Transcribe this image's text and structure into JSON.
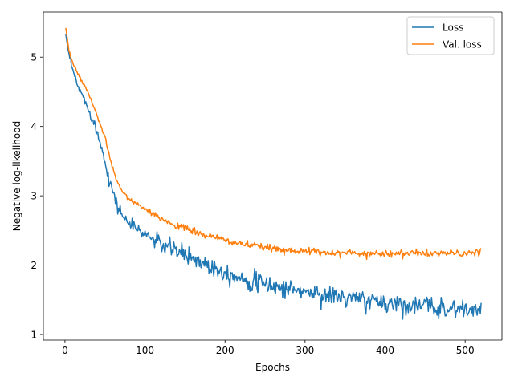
{
  "chart_data": {
    "type": "line",
    "title": "",
    "xlabel": "Epochs",
    "ylabel": "Negative log-likelihood",
    "xlim": [
      -27,
      546
    ],
    "ylim": [
      0.92,
      5.65
    ],
    "xticks": [
      0,
      100,
      200,
      300,
      400,
      500
    ],
    "yticks": [
      1,
      2,
      3,
      4,
      5
    ],
    "grid": false,
    "legend_position": "top-right",
    "series": [
      {
        "name": "Loss",
        "color": "#1f77b4",
        "x": [
          1,
          5,
          10,
          15,
          20,
          25,
          30,
          35,
          40,
          45,
          50,
          55,
          60,
          65,
          70,
          75,
          80,
          90,
          100,
          110,
          120,
          130,
          140,
          150,
          160,
          170,
          180,
          190,
          200,
          210,
          220,
          230,
          240,
          250,
          260,
          270,
          280,
          290,
          300,
          310,
          320,
          330,
          340,
          350,
          360,
          370,
          380,
          390,
          400,
          410,
          420,
          430,
          440,
          450,
          460,
          470,
          480,
          490,
          500,
          510,
          520
        ],
        "y": [
          5.33,
          5.02,
          4.8,
          4.6,
          4.5,
          4.35,
          4.25,
          4.1,
          3.92,
          3.72,
          3.52,
          3.25,
          3.05,
          2.88,
          2.75,
          2.68,
          2.6,
          2.52,
          2.45,
          2.38,
          2.3,
          2.25,
          2.2,
          2.15,
          2.1,
          2.05,
          2.0,
          1.95,
          1.9,
          1.86,
          1.82,
          1.78,
          1.75,
          1.72,
          1.7,
          1.68,
          1.66,
          1.64,
          1.62,
          1.6,
          1.58,
          1.56,
          1.55,
          1.53,
          1.52,
          1.5,
          1.49,
          1.47,
          1.46,
          1.45,
          1.44,
          1.43,
          1.42,
          1.41,
          1.4,
          1.39,
          1.38,
          1.37,
          1.36,
          1.35,
          1.35
        ],
        "noise": 0.07
      },
      {
        "name": "Val. loss",
        "color": "#ff7f0e",
        "x": [
          1,
          5,
          10,
          15,
          20,
          25,
          30,
          35,
          40,
          45,
          50,
          55,
          60,
          65,
          70,
          75,
          80,
          90,
          100,
          110,
          120,
          130,
          140,
          150,
          160,
          170,
          180,
          190,
          200,
          210,
          220,
          230,
          240,
          250,
          260,
          270,
          280,
          290,
          300,
          310,
          320,
          330,
          340,
          350,
          360,
          370,
          380,
          390,
          400,
          410,
          420,
          430,
          440,
          450,
          460,
          470,
          480,
          490,
          500,
          510,
          520
        ],
        "y": [
          5.42,
          5.1,
          4.9,
          4.78,
          4.68,
          4.58,
          4.45,
          4.3,
          4.15,
          4.0,
          3.85,
          3.6,
          3.38,
          3.2,
          3.1,
          3.02,
          2.95,
          2.88,
          2.8,
          2.73,
          2.67,
          2.62,
          2.57,
          2.53,
          2.49,
          2.45,
          2.42,
          2.39,
          2.36,
          2.33,
          2.31,
          2.29,
          2.27,
          2.25,
          2.24,
          2.23,
          2.22,
          2.21,
          2.2,
          2.19,
          2.19,
          2.18,
          2.18,
          2.18,
          2.17,
          2.17,
          2.17,
          2.17,
          2.17,
          2.17,
          2.17,
          2.17,
          2.17,
          2.17,
          2.17,
          2.17,
          2.17,
          2.17,
          2.17,
          2.17,
          2.18
        ],
        "noise": 0.025
      }
    ]
  }
}
